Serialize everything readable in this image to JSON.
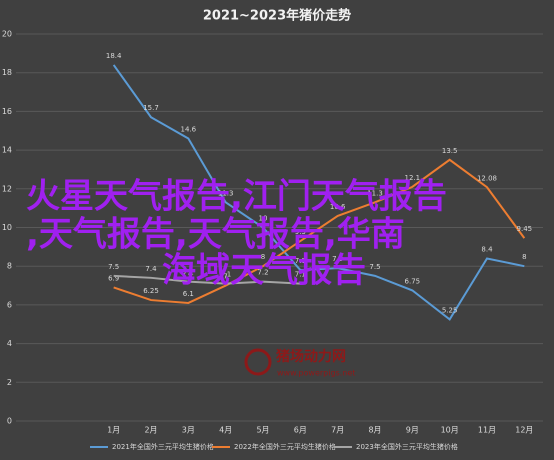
{
  "chart_data": {
    "type": "line",
    "title": "2021~2023年猪价走势",
    "categories": [
      "1月",
      "2月",
      "3月",
      "4月",
      "5月",
      "6月",
      "7月",
      "8月",
      "9月",
      "10月",
      "11月",
      "12月"
    ],
    "series": [
      {
        "name": "2021年全国外三元平均生猪价格",
        "color": "#5b9bd5",
        "values": [
          18.4,
          15.7,
          14.6,
          11.3,
          10.0,
          7.8,
          7.9,
          7.5,
          6.75,
          5.25,
          8.4,
          8.0
        ]
      },
      {
        "name": "2022年全国外三元平均生猪价格",
        "color": "#ed7d31",
        "values": [
          6.9,
          6.25,
          6.1,
          7.0,
          8.0,
          9.3,
          10.6,
          11.3,
          12.1,
          13.5,
          12.08,
          9.45
        ]
      },
      {
        "name": "2023年全国外三元平均生猪价格",
        "color": "#a5a5a5",
        "values": [
          7.5,
          7.4,
          7.2,
          7.1,
          7.2,
          7.1,
          null,
          null,
          null,
          null,
          null,
          null
        ]
      }
    ],
    "ylim": [
      0,
      20
    ],
    "yticks": [
      0,
      2,
      4,
      6,
      8,
      10,
      12,
      14,
      16,
      18,
      20
    ],
    "grid": true,
    "watermark": "猪场动力网",
    "watermark_url": "www.powerpigs.net",
    "overlay": [
      "火星天气报告,江门天气报告",
      ",天气报告,天气报告,华南",
      "海域天气报告"
    ]
  }
}
